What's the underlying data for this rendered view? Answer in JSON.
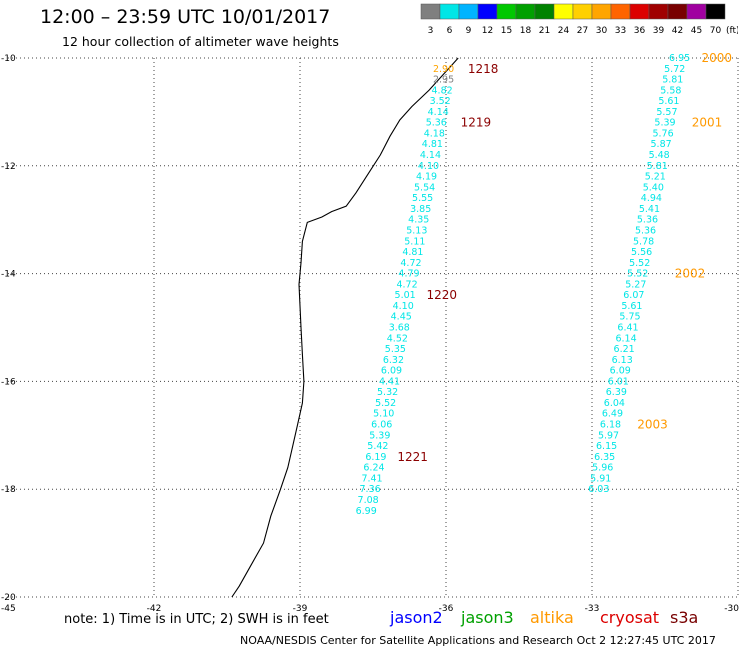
{
  "header": {
    "title": "12:00 – 23:59 UTC 10/01/2017",
    "subtitle": "12 hour collection of altimeter wave heights"
  },
  "colorbar": {
    "unit_label": "(ft)",
    "bins": [
      {
        "label": "3",
        "color": "#7f7f7f"
      },
      {
        "label": "6",
        "color": "#00e6e6"
      },
      {
        "label": "9",
        "color": "#00b4ff"
      },
      {
        "label": "12",
        "color": "#0000ff"
      },
      {
        "label": "15",
        "color": "#00c800"
      },
      {
        "label": "18",
        "color": "#00a000"
      },
      {
        "label": "21",
        "color": "#008200"
      },
      {
        "label": "24",
        "color": "#ffff00"
      },
      {
        "label": "27",
        "color": "#ffd000"
      },
      {
        "label": "30",
        "color": "#ffa500"
      },
      {
        "label": "33",
        "color": "#ff6400"
      },
      {
        "label": "36",
        "color": "#dc0000"
      },
      {
        "label": "39",
        "color": "#a00000"
      },
      {
        "label": "42",
        "color": "#780000"
      },
      {
        "label": "45",
        "color": "#a000a0"
      },
      {
        "label": "70",
        "color": "#000000"
      }
    ]
  },
  "axes": {
    "lon_ticks": [
      "-45",
      "-42",
      "-39",
      "-36",
      "-33",
      "-30"
    ],
    "lat_ticks": [
      "-10",
      "-12",
      "-14",
      "-16",
      "-18",
      "-20"
    ]
  },
  "tracks": [
    {
      "satellite": "cryosat",
      "color": "#00e6e6",
      "points": [
        {
          "lon": -36.05,
          "lat": -10.2,
          "value": "2.90",
          "color": "#ffa500"
        },
        {
          "lon": -36.05,
          "lat": -10.4,
          "value": "2.95",
          "color": "#7f7f7f"
        },
        {
          "lon": -36.08,
          "lat": -10.6,
          "value": "4.82"
        },
        {
          "lon": -36.12,
          "lat": -10.8,
          "value": "3.52"
        },
        {
          "lon": -36.16,
          "lat": -11.0,
          "value": "4.14"
        },
        {
          "lon": -36.2,
          "lat": -11.2,
          "value": "5.36"
        },
        {
          "lon": -36.24,
          "lat": -11.4,
          "value": "4.18"
        },
        {
          "lon": -36.28,
          "lat": -11.6,
          "value": "4.81"
        },
        {
          "lon": -36.32,
          "lat": -11.8,
          "value": "4.14"
        },
        {
          "lon": -36.36,
          "lat": -12.0,
          "value": "4.10"
        },
        {
          "lon": -36.4,
          "lat": -12.2,
          "value": "4.19"
        },
        {
          "lon": -36.44,
          "lat": -12.4,
          "value": "5.54"
        },
        {
          "lon": -36.48,
          "lat": -12.6,
          "value": "5.55"
        },
        {
          "lon": -36.52,
          "lat": -12.8,
          "value": "3.85"
        },
        {
          "lon": -36.56,
          "lat": -13.0,
          "value": "4.35"
        },
        {
          "lon": -36.6,
          "lat": -13.2,
          "value": "5.13"
        },
        {
          "lon": -36.64,
          "lat": -13.4,
          "value": "5.11"
        },
        {
          "lon": -36.68,
          "lat": -13.6,
          "value": "4.81"
        },
        {
          "lon": -36.72,
          "lat": -13.8,
          "value": "4.72"
        },
        {
          "lon": -36.76,
          "lat": -14.0,
          "value": "4.79"
        },
        {
          "lon": -36.8,
          "lat": -14.2,
          "value": "4.72"
        },
        {
          "lon": -36.84,
          "lat": -14.4,
          "value": "5.01"
        },
        {
          "lon": -36.88,
          "lat": -14.6,
          "value": "4.10"
        },
        {
          "lon": -36.92,
          "lat": -14.8,
          "value": "4.45"
        },
        {
          "lon": -36.96,
          "lat": -15.0,
          "value": "3.68"
        },
        {
          "lon": -37.0,
          "lat": -15.2,
          "value": "4.52"
        },
        {
          "lon": -37.04,
          "lat": -15.4,
          "value": "5.35"
        },
        {
          "lon": -37.08,
          "lat": -15.6,
          "value": "6.32"
        },
        {
          "lon": -37.12,
          "lat": -15.8,
          "value": "6.09"
        },
        {
          "lon": -37.16,
          "lat": -16.0,
          "value": "4.41"
        },
        {
          "lon": -37.2,
          "lat": -16.2,
          "value": "5.32"
        },
        {
          "lon": -37.24,
          "lat": -16.4,
          "value": "5.52"
        },
        {
          "lon": -37.28,
          "lat": -16.6,
          "value": "5.10"
        },
        {
          "lon": -37.32,
          "lat": -16.8,
          "value": "6.06"
        },
        {
          "lon": -37.36,
          "lat": -17.0,
          "value": "5.39"
        },
        {
          "lon": -37.4,
          "lat": -17.2,
          "value": "5.42"
        },
        {
          "lon": -37.44,
          "lat": -17.4,
          "value": "6.19"
        },
        {
          "lon": -37.48,
          "lat": -17.6,
          "value": "6.24"
        },
        {
          "lon": -37.52,
          "lat": -17.8,
          "value": "7.41"
        },
        {
          "lon": -37.56,
          "lat": -18.0,
          "value": "7.36"
        },
        {
          "lon": -37.6,
          "lat": -18.2,
          "value": "7.08"
        },
        {
          "lon": -37.64,
          "lat": -18.4,
          "value": "6.99"
        }
      ],
      "time_labels": [
        {
          "lon": -35.55,
          "lat": -10.2,
          "text": "1218"
        },
        {
          "lon": -35.7,
          "lat": -11.2,
          "text": "1219"
        },
        {
          "lon": -36.4,
          "lat": -14.4,
          "text": "1220"
        },
        {
          "lon": -37.0,
          "lat": -17.4,
          "text": "1221"
        }
      ]
    },
    {
      "satellite": "altika",
      "color": "#00e6e6",
      "points": [
        {
          "lon": -31.2,
          "lat": -10.0,
          "value": "6.95"
        },
        {
          "lon": -31.3,
          "lat": -10.2,
          "value": "5.72"
        },
        {
          "lon": -31.34,
          "lat": -10.4,
          "value": "5.81"
        },
        {
          "lon": -31.38,
          "lat": -10.6,
          "value": "5.58"
        },
        {
          "lon": -31.42,
          "lat": -10.8,
          "value": "5.61"
        },
        {
          "lon": -31.46,
          "lat": -11.0,
          "value": "5.57"
        },
        {
          "lon": -31.5,
          "lat": -11.2,
          "value": "5.39"
        },
        {
          "lon": -31.54,
          "lat": -11.4,
          "value": "5.76"
        },
        {
          "lon": -31.58,
          "lat": -11.6,
          "value": "5.87"
        },
        {
          "lon": -31.62,
          "lat": -11.8,
          "value": "5.48"
        },
        {
          "lon": -31.66,
          "lat": -12.0,
          "value": "5.81"
        },
        {
          "lon": -31.7,
          "lat": -12.2,
          "value": "5.21"
        },
        {
          "lon": -31.74,
          "lat": -12.4,
          "value": "5.40"
        },
        {
          "lon": -31.78,
          "lat": -12.6,
          "value": "4.94"
        },
        {
          "lon": -31.82,
          "lat": -12.8,
          "value": "5.41"
        },
        {
          "lon": -31.86,
          "lat": -13.0,
          "value": "5.36"
        },
        {
          "lon": -31.9,
          "lat": -13.2,
          "value": "5.36"
        },
        {
          "lon": -31.94,
          "lat": -13.4,
          "value": "5.78"
        },
        {
          "lon": -31.98,
          "lat": -13.6,
          "value": "5.56"
        },
        {
          "lon": -32.02,
          "lat": -13.8,
          "value": "5.52"
        },
        {
          "lon": -32.06,
          "lat": -14.0,
          "value": "5.52"
        },
        {
          "lon": -32.1,
          "lat": -14.2,
          "value": "5.27"
        },
        {
          "lon": -32.14,
          "lat": -14.4,
          "value": "6.07"
        },
        {
          "lon": -32.18,
          "lat": -14.6,
          "value": "5.61"
        },
        {
          "lon": -32.22,
          "lat": -14.8,
          "value": "5.75"
        },
        {
          "lon": -32.26,
          "lat": -15.0,
          "value": "6.41"
        },
        {
          "lon": -32.3,
          "lat": -15.2,
          "value": "6.14"
        },
        {
          "lon": -32.34,
          "lat": -15.4,
          "value": "6.21"
        },
        {
          "lon": -32.38,
          "lat": -15.6,
          "value": "6.13"
        },
        {
          "lon": -32.42,
          "lat": -15.8,
          "value": "6.09"
        },
        {
          "lon": -32.46,
          "lat": -16.0,
          "value": "6.01"
        },
        {
          "lon": -32.5,
          "lat": -16.2,
          "value": "6.39"
        },
        {
          "lon": -32.54,
          "lat": -16.4,
          "value": "6.04"
        },
        {
          "lon": -32.58,
          "lat": -16.6,
          "value": "6.49"
        },
        {
          "lon": -32.62,
          "lat": -16.8,
          "value": "6.18"
        },
        {
          "lon": -32.66,
          "lat": -17.0,
          "value": "5.97"
        },
        {
          "lon": -32.7,
          "lat": -17.2,
          "value": "6.15"
        },
        {
          "lon": -32.74,
          "lat": -17.4,
          "value": "6.35"
        },
        {
          "lon": -32.78,
          "lat": -17.6,
          "value": "5.96"
        },
        {
          "lon": -32.82,
          "lat": -17.8,
          "value": "5.91"
        },
        {
          "lon": -32.86,
          "lat": -18.0,
          "value": "6.03"
        }
      ],
      "time_labels": [
        {
          "lon": -30.75,
          "lat": -10.0,
          "text": "2000"
        },
        {
          "lon": -30.95,
          "lat": -11.2,
          "text": "2001"
        },
        {
          "lon": -31.3,
          "lat": -14.0,
          "text": "2002"
        },
        {
          "lon": -32.07,
          "lat": -16.8,
          "text": "2003"
        }
      ]
    }
  ],
  "notes": {
    "note": "note: 1) Time is in UTC; 2) SWH is in feet"
  },
  "satellite_legend": [
    {
      "name": "jason2",
      "color": "#0000ff"
    },
    {
      "name": "jason3",
      "color": "#00a000"
    },
    {
      "name": "altika",
      "color": "#ff9900"
    },
    {
      "name": "cryosat",
      "color": "#dc0000"
    },
    {
      "name": "s3a",
      "color": "#780000"
    }
  ],
  "footer": {
    "text": "NOAA/NESDIS Center for Satellite Applications and Research   Oct  2 12:27:45 UTC 2017"
  }
}
